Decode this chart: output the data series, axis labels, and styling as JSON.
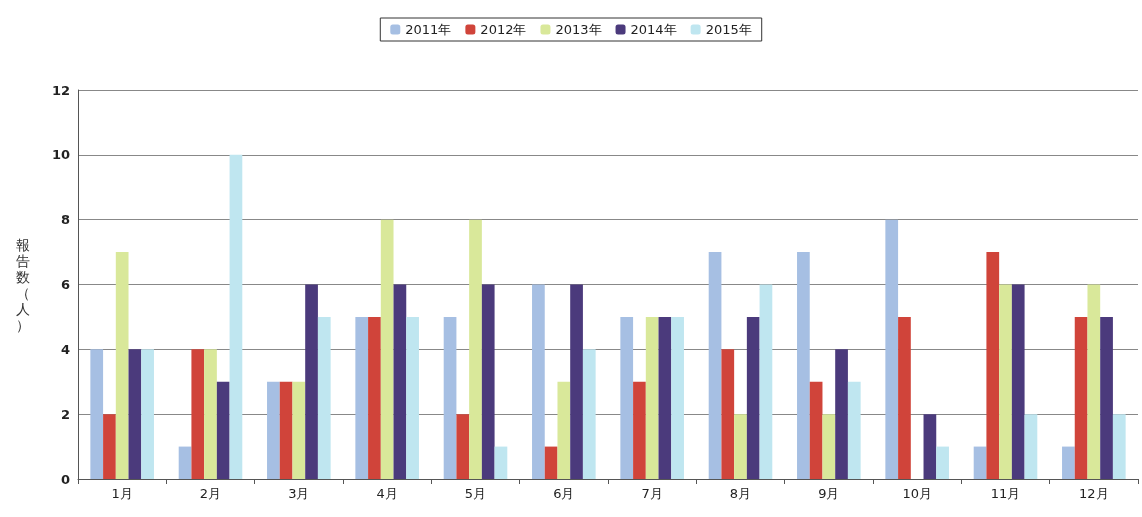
{
  "chart_data": {
    "type": "bar",
    "ylabel": "報告数（人）",
    "categories": [
      "1月",
      "2月",
      "3月",
      "4月",
      "5月",
      "6月",
      "7月",
      "8月",
      "9月",
      "10月",
      "11月",
      "12月"
    ],
    "series": [
      {
        "name": "2011年",
        "color": "#a6bfe3",
        "values": [
          4,
          1,
          3,
          5,
          5,
          6,
          5,
          7,
          7,
          8,
          1,
          1
        ]
      },
      {
        "name": "2012年",
        "color": "#d0443a",
        "values": [
          2,
          4,
          3,
          5,
          2,
          1,
          3,
          4,
          3,
          5,
          7,
          5
        ]
      },
      {
        "name": "2013年",
        "color": "#d9e89a",
        "values": [
          7,
          4,
          3,
          8,
          8,
          3,
          5,
          2,
          2,
          0,
          6,
          6
        ]
      },
      {
        "name": "2014年",
        "color": "#4b3a7c",
        "values": [
          4,
          3,
          6,
          6,
          6,
          6,
          5,
          5,
          4,
          2,
          6,
          5
        ]
      },
      {
        "name": "2015年",
        "color": "#bfe6f0",
        "values": [
          4,
          10,
          5,
          5,
          1,
          4,
          5,
          6,
          3,
          1,
          2,
          2
        ]
      }
    ],
    "ylim": [
      0,
      12
    ],
    "yticks": [
      0,
      2,
      4,
      6,
      8,
      10,
      12
    ],
    "grid": "y",
    "legend": "top"
  }
}
